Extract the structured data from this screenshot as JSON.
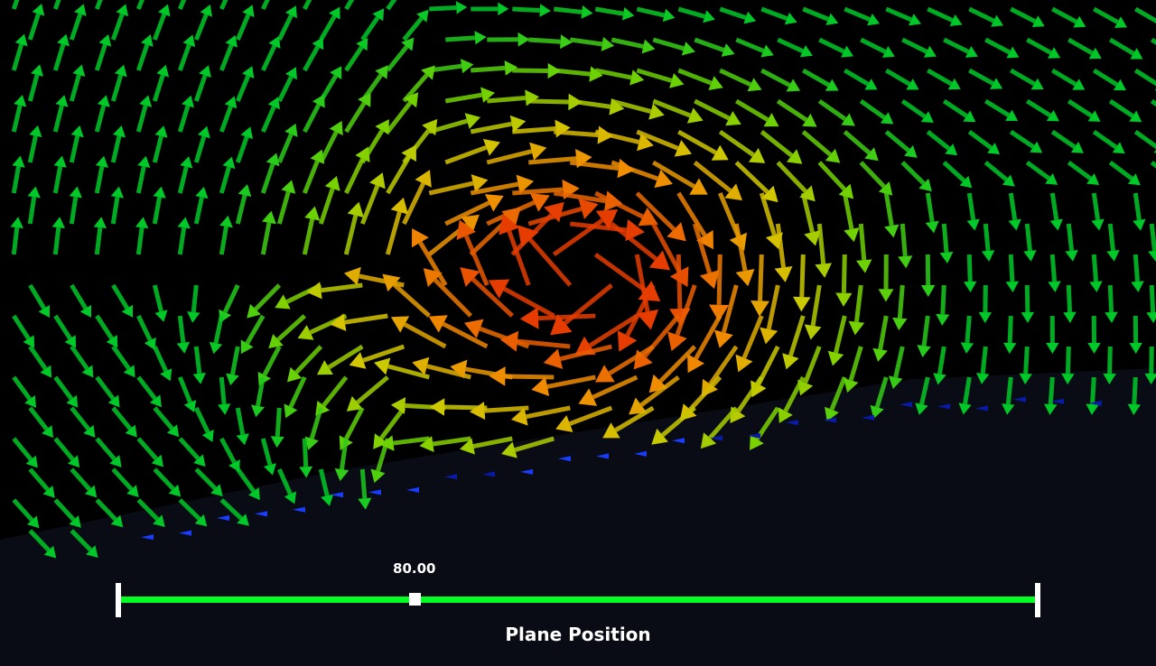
{
  "scene": {
    "name": "vector-field-glyph-view",
    "background_color": "#000000",
    "floor_color": "#0b0d16",
    "color_map": [
      "#0000ff",
      "#00ffaa",
      "#00dd00",
      "#ccdd00",
      "#ff8800",
      "#ff2200"
    ]
  },
  "slider": {
    "title": "Plane Position",
    "value_label": "80.00",
    "value_fraction": 0.322,
    "track_color": "#00ff22",
    "handle_color": "#ffffff"
  }
}
